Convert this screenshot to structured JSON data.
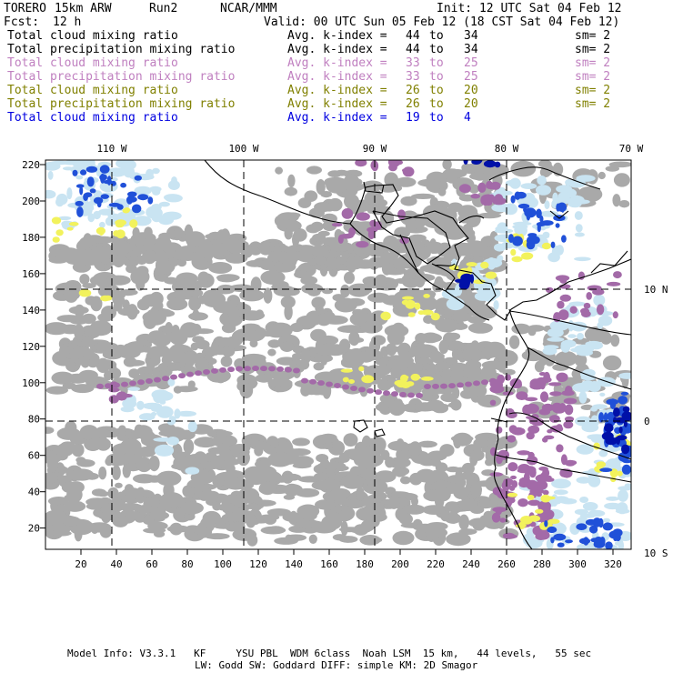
{
  "header": {
    "model": "TORERO",
    "resolution": "15km ARW",
    "run": "Run2",
    "org": "NCAR/MMM",
    "init": "Init: 12 UTC Sat 04 Feb 12",
    "fcst_label": "Fcst:",
    "fcst_value": "12 h",
    "valid": "Valid: 00 UTC Sun 05 Feb 12 (18 CST Sat 04 Feb 12)"
  },
  "legend": [
    {
      "field": "Total cloud mixing ratio",
      "index_label": "Avg. k-index =",
      "from": "44",
      "to_word": "to",
      "to": "34",
      "sm": "sm= 2",
      "color": "#000000"
    },
    {
      "field": "Total precipitation mixing ratio",
      "index_label": "Avg. k-index =",
      "from": "44",
      "to_word": "to",
      "to": "34",
      "sm": "sm= 2",
      "color": "#000000"
    },
    {
      "field": "Total cloud mixing ratio",
      "index_label": "Avg. k-index =",
      "from": "33",
      "to_word": "to",
      "to": "25",
      "sm": "sm= 2",
      "color": "#c080c0"
    },
    {
      "field": "Total precipitation mixing ratio",
      "index_label": "Avg. k-index =",
      "from": "33",
      "to_word": "to",
      "to": "25",
      "sm": "sm= 2",
      "color": "#c080c0"
    },
    {
      "field": "Total cloud mixing ratio",
      "index_label": "Avg. k-index =",
      "from": "26",
      "to_word": "to",
      "to": "20",
      "sm": "sm= 2",
      "color": "#808000"
    },
    {
      "field": "Total precipitation mixing ratio",
      "index_label": "Avg. k-index =",
      "from": "26",
      "to_word": "to",
      "to": "20",
      "sm": "sm= 2",
      "color": "#808000"
    },
    {
      "field": "Total cloud mixing ratio",
      "index_label": "Avg. k-index =",
      "from": "19",
      "to_word": "to",
      "to": "4",
      "sm": "",
      "color": "#0000e0"
    }
  ],
  "map": {
    "top_lon_labels": [
      "110 W",
      "100 W",
      "90 W",
      "80 W",
      "70 W"
    ],
    "right_lat_labels": [
      "10 N",
      "0",
      "10 S"
    ],
    "left_ticks": [
      "220",
      "200",
      "180",
      "160",
      "140",
      "120",
      "100",
      "80",
      "60",
      "40",
      "20"
    ],
    "bottom_ticks": [
      "20",
      "40",
      "60",
      "80",
      "100",
      "120",
      "140",
      "160",
      "180",
      "200",
      "220",
      "240",
      "260",
      "280",
      "300",
      "320"
    ],
    "colors": {
      "gray": "#a9a9a9",
      "purple": "#a36aa8",
      "yellow": "#f2f25c",
      "lightblue": "#c9e4f2",
      "blue": "#2050d8",
      "darkblue": "#0010a8"
    }
  },
  "footer": {
    "line1": "Model Info: V3.3.1   KF     YSU PBL  WDM 6class  Noah LSM  15 km,   44 levels,   55 sec",
    "line2": "LW: Godd SW: Goddard DIFF: simple KM: 2D Smagor"
  }
}
